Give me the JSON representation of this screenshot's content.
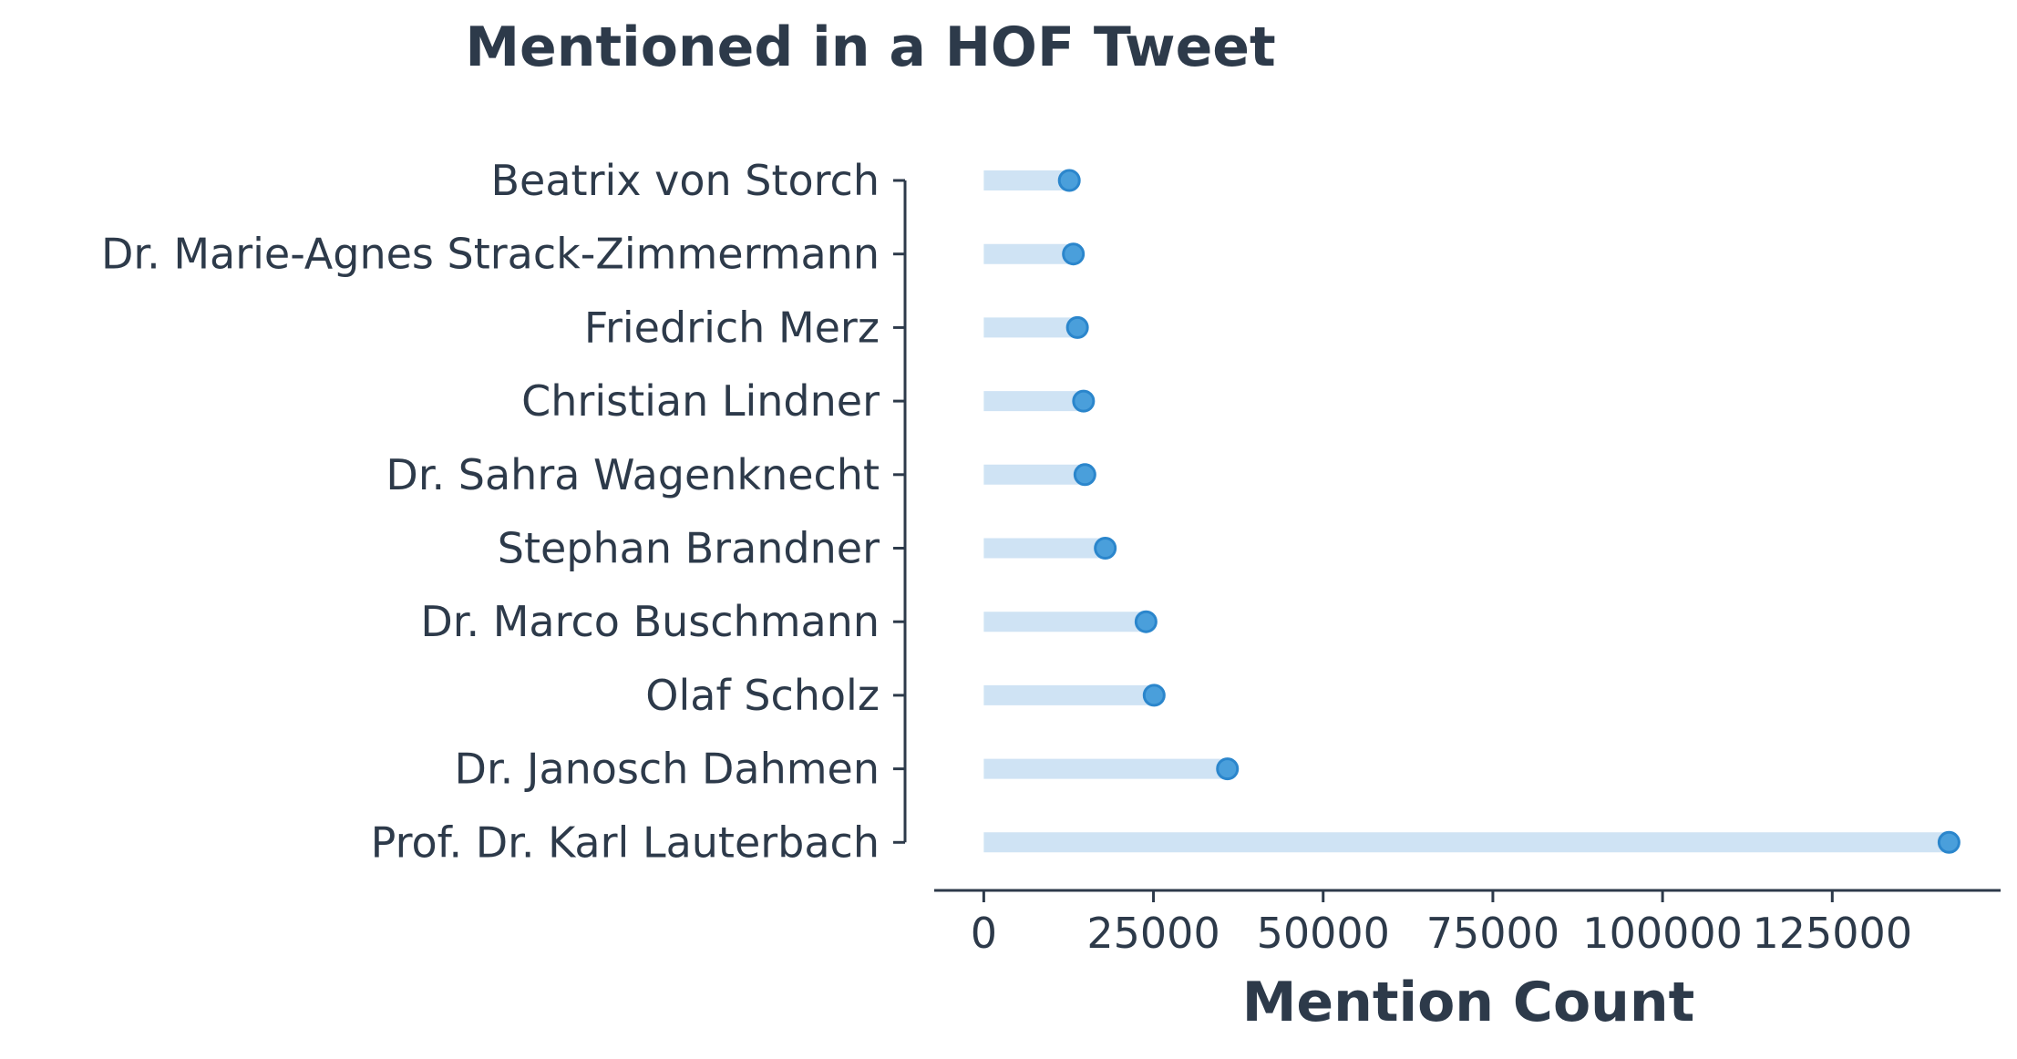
{
  "chart_data": {
    "type": "lollipop",
    "title": "Mentioned in a HOF Tweet",
    "xlabel": "Mention Count",
    "ylabel": "",
    "categories": [
      "Beatrix von Storch",
      "Dr. Marie-Agnes Strack-Zimmermann",
      "Friedrich Merz",
      "Christian Lindner",
      "Dr. Sahra Wagenknecht",
      "Stephan Brandner",
      "Dr. Marco Buschmann",
      "Olaf Scholz",
      "Dr. Janosch Dahmen",
      "Prof. Dr. Karl Lauterbach"
    ],
    "values": [
      12600,
      13200,
      13800,
      14700,
      14900,
      17900,
      23900,
      25100,
      35900,
      142200
    ],
    "xlim": [
      -7300,
      149800
    ],
    "xticks": [
      0,
      25000,
      50000,
      75000,
      100000,
      125000
    ],
    "xtick_labels": [
      "0",
      "25000",
      "50000",
      "75000",
      "100000",
      "125000"
    ],
    "grid": false,
    "colors": {
      "text": "#2d3a4a",
      "stem": "#cfe3f4",
      "marker_fill": "#4a9fdb",
      "marker_edge": "#2b86cc",
      "axis": "#2d3a4a"
    }
  }
}
